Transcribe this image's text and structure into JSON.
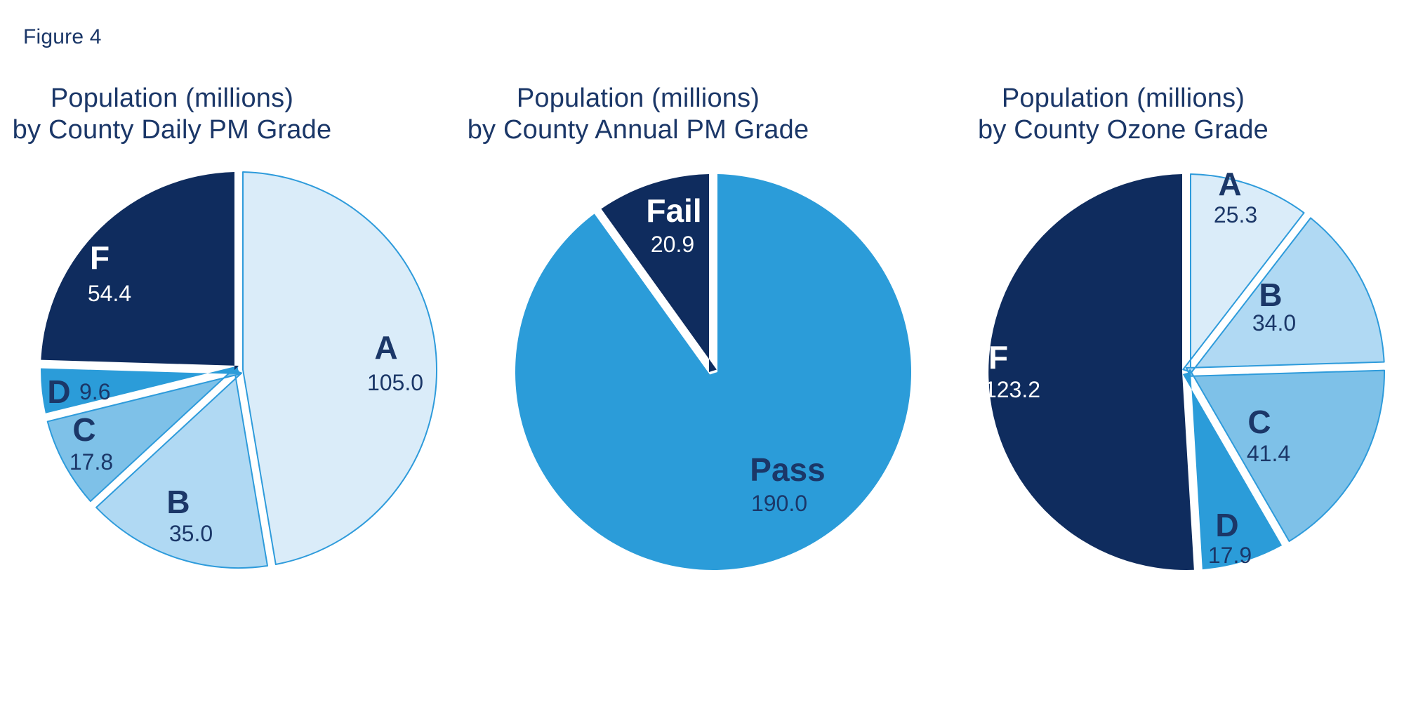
{
  "figure_label": "Figure 4",
  "colors": {
    "background": "#FFFFFF",
    "navy": "#0F2C5E",
    "bright_blue": "#2B9CD9",
    "medium_blue": "#7EC1E8",
    "light_blue": "#B0D9F3",
    "pale_blue": "#DAECF9",
    "slice_outline": "#2E9BDB",
    "navy_text": "#1B3768",
    "white_text": "#FFFFFF"
  },
  "chart_data": [
    {
      "type": "pie",
      "title_lines": [
        "Population (millions)",
        "by County Daily PM Grade"
      ],
      "start_angle_deg": 0,
      "direction": "clockwise",
      "total": 221.8,
      "slices": [
        {
          "label": "A",
          "value": 105.0,
          "value_label": "105.0",
          "color_key": "pale_blue",
          "outlined": true,
          "label_color": "navy_text"
        },
        {
          "label": "B",
          "value": 35.0,
          "value_label": "35.0",
          "color_key": "light_blue",
          "outlined": true,
          "label_color": "navy_text"
        },
        {
          "label": "C",
          "value": 17.8,
          "value_label": "17.8",
          "color_key": "medium_blue",
          "outlined": true,
          "label_color": "navy_text"
        },
        {
          "label": "D",
          "value": 9.6,
          "value_label": "9.6",
          "color_key": "bright_blue",
          "outlined": false,
          "label_color": "navy_text",
          "inline_value": true
        },
        {
          "label": "F",
          "value": 54.4,
          "value_label": "54.4",
          "color_key": "navy",
          "outlined": false,
          "label_color": "white_text"
        }
      ]
    },
    {
      "type": "pie",
      "title_lines": [
        "Population (millions)",
        "by County Annual PM Grade"
      ],
      "start_angle_deg": 0,
      "direction": "clockwise",
      "total": 210.9,
      "slices": [
        {
          "label": "Pass",
          "value": 190.0,
          "value_label": "190.0",
          "color_key": "bright_blue",
          "outlined": false,
          "label_color": "navy_text"
        },
        {
          "label": "Fail",
          "value": 20.9,
          "value_label": "20.9",
          "color_key": "navy",
          "outlined": false,
          "label_color": "white_text"
        }
      ]
    },
    {
      "type": "pie",
      "title_lines": [
        "Population (millions)",
        "by County Ozone Grade"
      ],
      "start_angle_deg": 0,
      "direction": "clockwise",
      "total": 241.8,
      "slices": [
        {
          "label": "A",
          "value": 25.3,
          "value_label": "25.3",
          "color_key": "pale_blue",
          "outlined": true,
          "label_color": "navy_text"
        },
        {
          "label": "B",
          "value": 34.0,
          "value_label": "34.0",
          "color_key": "light_blue",
          "outlined": true,
          "label_color": "navy_text"
        },
        {
          "label": "C",
          "value": 41.4,
          "value_label": "41.4",
          "color_key": "medium_blue",
          "outlined": true,
          "label_color": "navy_text"
        },
        {
          "label": "D",
          "value": 17.9,
          "value_label": "17.9",
          "color_key": "bright_blue",
          "outlined": false,
          "label_color": "navy_text"
        },
        {
          "label": "F",
          "value": 123.2,
          "value_label": "123.2",
          "color_key": "navy",
          "outlined": false,
          "label_color": "white_text"
        }
      ]
    }
  ]
}
